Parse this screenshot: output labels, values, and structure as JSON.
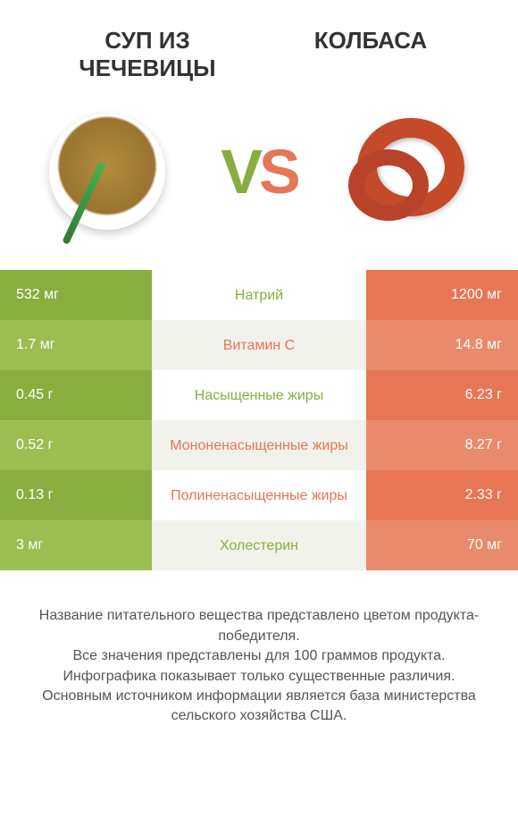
{
  "header": {
    "left_title": "СУП ИЗ ЧЕЧЕВИЦЫ",
    "right_title": "КОЛБАСА",
    "vs": "VS"
  },
  "colors": {
    "green_dark": "#8aad3f",
    "green_light": "#9cbd52",
    "orange_dark": "#e67655",
    "orange_light": "#ea8a6d",
    "mid_alt": "#f2f2ed",
    "text": "#333333"
  },
  "comparison": {
    "left_column_color": "green",
    "right_column_color": "orange",
    "rows": [
      {
        "left": "532 мг",
        "label": "Натрий",
        "winner": "green",
        "right": "1200 мг"
      },
      {
        "left": "1.7 мг",
        "label": "Витамин C",
        "winner": "orange",
        "right": "14.8 мг"
      },
      {
        "left": "0.45 г",
        "label": "Насыщенные жиры",
        "winner": "green",
        "right": "6.23 г"
      },
      {
        "left": "0.52 г",
        "label": "Мононенасыщенные жиры",
        "winner": "orange",
        "right": "8.27 г"
      },
      {
        "left": "0.13 г",
        "label": "Полиненасыщенные жиры",
        "winner": "orange",
        "right": "2.33 г"
      },
      {
        "left": "3 мг",
        "label": "Холестерин",
        "winner": "green",
        "right": "70 мг"
      }
    ]
  },
  "footer": {
    "line1": "Название питательного вещества представлено цветом продукта-победителя.",
    "line2": "Все значения представлены для 100 граммов продукта.",
    "line3": "Инфографика показывает только существенные различия.",
    "line4": "Основным источником информации является база министерства сельского хозяйства США."
  }
}
